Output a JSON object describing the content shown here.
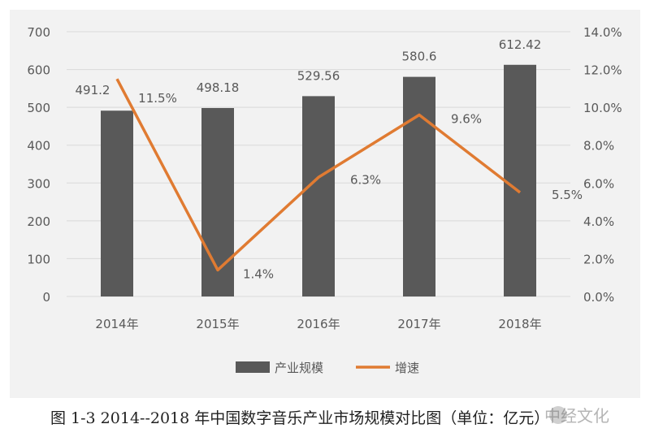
{
  "chart_data": {
    "type": "bar+line",
    "categories": [
      "2014年",
      "2015年",
      "2016年",
      "2017年",
      "2018年"
    ],
    "series": [
      {
        "name": "产业规模",
        "type": "bar",
        "axis": "left",
        "values": [
          491.2,
          498.18,
          529.56,
          580.6,
          612.42
        ],
        "labels": [
          "491.2",
          "498.18",
          "529.56",
          "580.6",
          "612.42"
        ]
      },
      {
        "name": "增速",
        "type": "line",
        "axis": "right",
        "values": [
          11.5,
          1.4,
          6.3,
          9.6,
          5.5
        ],
        "labels": [
          "11.5%",
          "1.4%",
          "6.3%",
          "9.6%",
          "5.5%"
        ]
      }
    ],
    "y_left": {
      "lim": [
        0,
        700
      ],
      "ticks": [
        0,
        100,
        200,
        300,
        400,
        500,
        600,
        700
      ],
      "tick_labels": [
        "0",
        "100",
        "200",
        "300",
        "400",
        "500",
        "600",
        "700"
      ]
    },
    "y_right": {
      "lim": [
        0,
        14
      ],
      "ticks": [
        0,
        2,
        4,
        6,
        8,
        10,
        12,
        14
      ],
      "tick_labels": [
        "0.0%",
        "2.0%",
        "4.0%",
        "6.0%",
        "8.0%",
        "10.0%",
        "12.0%",
        "14.0%"
      ]
    },
    "grid": true,
    "legend_position": "bottom",
    "colors": {
      "bar": "#595959",
      "line": "#e07b32",
      "grid": "#d9d9d9",
      "text": "#595959",
      "background": "#f2f2f2"
    }
  },
  "caption": "图 1-3 2014--2018 年中国数字音乐产业市场规模对比图（单位：亿元）",
  "watermark": "中经文化"
}
